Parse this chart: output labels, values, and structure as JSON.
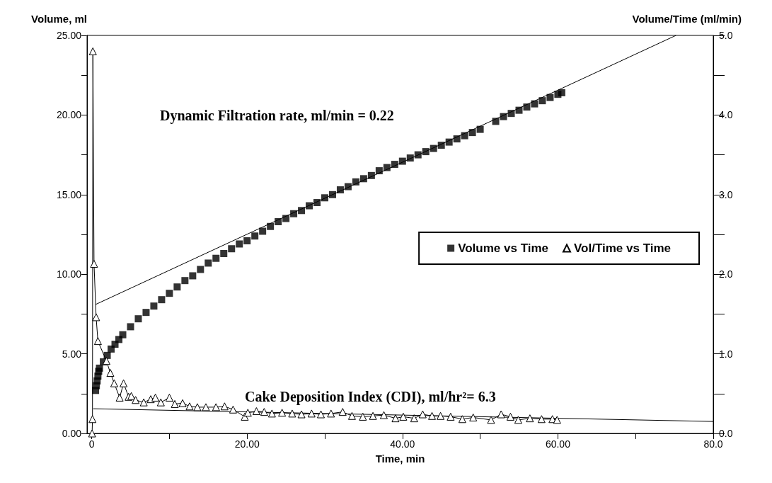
{
  "chart_data": {
    "type": "scatter",
    "xlabel": "Time, min",
    "ylabel": "Volume, ml",
    "y2label": "Volume/Time (ml/min)",
    "xlim": [
      -0.6,
      80
    ],
    "xticks": [
      {
        "value": 0,
        "label": "0"
      },
      {
        "value": 10,
        "label": null
      },
      {
        "value": 20,
        "label": "20.00"
      },
      {
        "value": 30,
        "label": null
      },
      {
        "value": 40,
        "label": "40.00"
      },
      {
        "value": 50,
        "label": null
      },
      {
        "value": 60,
        "label": "60.00"
      },
      {
        "value": 70,
        "label": null
      },
      {
        "value": 80,
        "label": "80.0"
      }
    ],
    "ylim": [
      0,
      25
    ],
    "yticks": [
      {
        "value": 0,
        "label": "0.00"
      },
      {
        "value": 2.5,
        "label": null
      },
      {
        "value": 5,
        "label": "5.00"
      },
      {
        "value": 7.5,
        "label": null
      },
      {
        "value": 10,
        "label": "10.00"
      },
      {
        "value": 12.5,
        "label": null
      },
      {
        "value": 15,
        "label": "15.00"
      },
      {
        "value": 17.5,
        "label": null
      },
      {
        "value": 20,
        "label": "20.00"
      },
      {
        "value": 22.5,
        "label": null
      },
      {
        "value": 25,
        "label": "25.00"
      }
    ],
    "y2lim": [
      0,
      5
    ],
    "y2ticks": [
      {
        "value": 0,
        "label": "0.0"
      },
      {
        "value": 0.5,
        "label": null
      },
      {
        "value": 1,
        "label": "1.0"
      },
      {
        "value": 1.5,
        "label": null
      },
      {
        "value": 2,
        "label": "2.0"
      },
      {
        "value": 2.5,
        "label": null
      },
      {
        "value": 3,
        "label": "3.0"
      },
      {
        "value": 3.5,
        "label": null
      },
      {
        "value": 4,
        "label": "4.0"
      },
      {
        "value": 4.5,
        "label": null
      },
      {
        "value": 5,
        "label": "5.0"
      }
    ],
    "grid": false,
    "legend": "right",
    "annotations": [
      "Dynamic Filtration rate, ml/min = 0.22",
      "Cake Deposition Index (CDI), ml/hr²= 6.3"
    ],
    "series": [
      {
        "name": "Volume vs Time",
        "marker": "square",
        "color": "#000000",
        "x": [
          0.5,
          0.6,
          0.7,
          0.8,
          0.9,
          1,
          1.5,
          2,
          2.5,
          3,
          3.5,
          4,
          5,
          6,
          7,
          8,
          9,
          10,
          11,
          12,
          13,
          14,
          15,
          16,
          17,
          18,
          19,
          20,
          21,
          22,
          23,
          24,
          25,
          26,
          27,
          28,
          29,
          30,
          31,
          32,
          33,
          34,
          35,
          36,
          37,
          38,
          39,
          40,
          41,
          42,
          43,
          44,
          45,
          46,
          47,
          48,
          49,
          50,
          52,
          53,
          54,
          55,
          56,
          57,
          58,
          59,
          60,
          60.5
        ],
        "values": [
          2.7,
          3.0,
          3.3,
          3.6,
          3.9,
          4.1,
          4.5,
          4.9,
          5.3,
          5.6,
          5.9,
          6.2,
          6.7,
          7.2,
          7.6,
          8.0,
          8.4,
          8.8,
          9.2,
          9.6,
          9.9,
          10.3,
          10.7,
          11.0,
          11.3,
          11.6,
          11.9,
          12.1,
          12.4,
          12.7,
          13.0,
          13.3,
          13.5,
          13.8,
          14.0,
          14.3,
          14.5,
          14.8,
          15.0,
          15.3,
          15.5,
          15.8,
          16.0,
          16.2,
          16.5,
          16.7,
          16.9,
          17.1,
          17.3,
          17.5,
          17.7,
          17.9,
          18.1,
          18.3,
          18.5,
          18.7,
          18.9,
          19.1,
          19.6,
          19.9,
          20.1,
          20.3,
          20.5,
          20.7,
          20.9,
          21.1,
          21.3,
          21.4
        ]
      },
      {
        "name": "Vol/Time vs Time",
        "type": "line",
        "axis": "y2",
        "marker": "triangle",
        "line_style": "solid",
        "color": "#000000",
        "x": [
          0.05,
          0.1,
          0.15,
          0.3,
          0.57,
          0.8,
          1.9,
          2.4,
          2.9,
          3.6,
          4.1,
          4.75,
          5.1,
          5.65,
          6.7,
          7.6,
          8.2,
          8.9,
          10,
          10.7,
          11.7,
          12.6,
          13.6,
          14.7,
          16,
          17.1,
          18.2,
          19.7,
          20.1,
          21.2,
          22.2,
          23.2,
          24.5,
          25.8,
          27,
          28.3,
          29.5,
          30.8,
          32.3,
          33.5,
          34.9,
          36.2,
          37.6,
          39.1,
          40.1,
          41.5,
          42.6,
          43.8,
          44.9,
          46.2,
          47.7,
          49.1,
          51.4,
          52.7,
          53.9,
          54.9,
          56.4,
          57.9,
          59.3,
          59.9
        ],
        "values": [
          0,
          0.18,
          4.8,
          2.13,
          1.46,
          1.16,
          0.91,
          0.76,
          0.63,
          0.45,
          0.63,
          0.46,
          0.47,
          0.42,
          0.39,
          0.43,
          0.45,
          0.39,
          0.45,
          0.37,
          0.38,
          0.34,
          0.33,
          0.33,
          0.33,
          0.34,
          0.3,
          0.21,
          0.26,
          0.28,
          0.27,
          0.25,
          0.26,
          0.25,
          0.24,
          0.25,
          0.24,
          0.25,
          0.27,
          0.22,
          0.21,
          0.22,
          0.23,
          0.19,
          0.21,
          0.19,
          0.24,
          0.22,
          0.22,
          0.21,
          0.18,
          0.2,
          0.17,
          0.24,
          0.21,
          0.17,
          0.19,
          0.18,
          0.18,
          0.17
        ]
      },
      {
        "type": "line",
        "marker": "none",
        "line_style": "solid",
        "color": "#000000",
        "x": [
          0.5,
          75.2
        ],
        "values": [
          8.1,
          25
        ]
      },
      {
        "type": "line",
        "axis": "y2",
        "marker": "none",
        "line_style": "solid",
        "color": "#000000",
        "x": [
          0.2,
          80
        ],
        "values": [
          0.31,
          0.15
        ]
      }
    ]
  }
}
